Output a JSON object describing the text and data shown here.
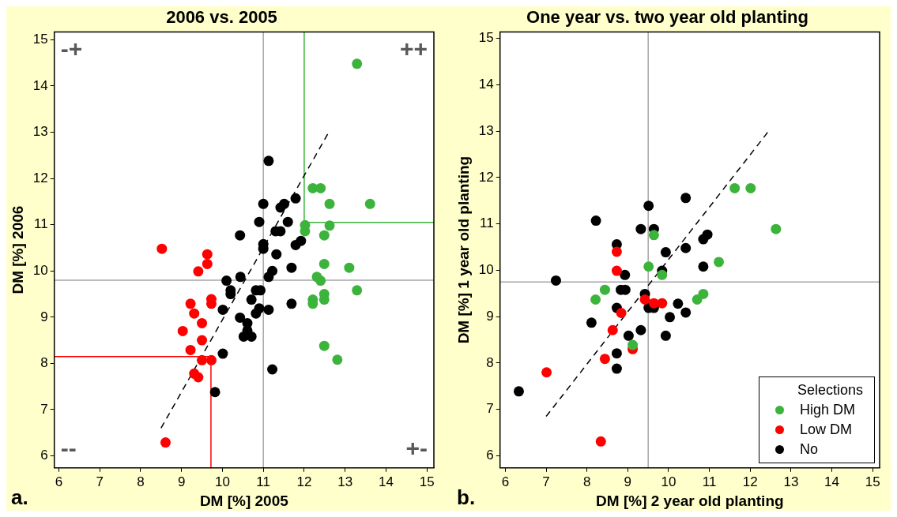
{
  "chart_data": [
    {
      "type": "scatter",
      "title": "2006 vs. 2005",
      "xlabel": "DM [%] 2005",
      "ylabel": "DM [%] 2006",
      "xlim": [
        5.89,
        15.17
      ],
      "ylim": [
        5.74,
        15.17
      ],
      "xticks": [
        6,
        7,
        8,
        9,
        10,
        11,
        12,
        13,
        14,
        15
      ],
      "yticks": [
        6,
        7,
        8,
        9,
        10,
        11,
        12,
        13,
        14,
        15
      ],
      "grid": false,
      "legend": false,
      "marker": "circle",
      "annotations": [
        "-+",
        "++",
        "--",
        "+-",
        "a."
      ],
      "ref_lines": [
        {
          "axis": "x",
          "value": 11,
          "color": "#a6a6a6"
        },
        {
          "axis": "y",
          "value": 9.8,
          "color": "#a6a6a6"
        }
      ],
      "series": [
        {
          "color": "#3cb43c",
          "x": [
            13.29,
            12.21,
            12.4,
            12.62,
            13.61,
            12.02,
            12.02,
            12.62,
            12.49,
            12.49,
            13.1,
            12.31,
            12.4,
            13.29,
            12.21,
            12.21,
            12.49,
            12.49,
            12.49,
            12.81
          ],
          "values": [
            14.48,
            11.79,
            11.79,
            11.45,
            11.45,
            10.99,
            10.86,
            10.98,
            10.77,
            10.15,
            10.07,
            9.87,
            9.79,
            9.58,
            9.38,
            9.29,
            9.5,
            9.38,
            8.38,
            8.08
          ]
        },
        {
          "color": "#ff0000",
          "x": [
            8.52,
            9.63,
            9.63,
            9.41,
            9.73,
            9.73,
            9.22,
            9.31,
            9.5,
            9.03,
            9.5,
            9.22,
            9.5,
            9.73,
            9.31,
            9.41,
            8.61
          ],
          "values": [
            10.48,
            10.36,
            10.15,
            9.99,
            9.39,
            9.29,
            9.29,
            9.08,
            8.87,
            8.7,
            8.5,
            8.29,
            8.07,
            8.07,
            7.78,
            7.7,
            6.29
          ]
        },
        {
          "color": "#000000",
          "x": [
            11.13,
            11.0,
            11.42,
            11.51,
            11.79,
            10.9,
            11.6,
            11.3,
            11.42,
            10.43,
            11.0,
            11.0,
            11.32,
            11.79,
            11.92,
            11.69,
            11.22,
            11.13,
            10.1,
            10.44,
            10.2,
            10.2,
            10.82,
            10.93,
            10.71,
            11.69,
            10.01,
            11.13,
            10.9,
            10.82,
            10.43,
            10.61,
            10.61,
            10.52,
            10.71,
            10.01,
            11.22,
            9.82
          ],
          "values": [
            12.38,
            11.45,
            11.37,
            11.45,
            11.57,
            11.06,
            11.06,
            10.86,
            10.86,
            10.77,
            10.58,
            10.48,
            10.36,
            10.56,
            10.65,
            10.07,
            10.0,
            9.87,
            9.79,
            9.87,
            9.58,
            9.5,
            9.58,
            9.58,
            9.38,
            9.29,
            9.16,
            9.16,
            9.19,
            9.08,
            8.99,
            8.87,
            8.71,
            8.58,
            8.58,
            8.21,
            7.87,
            7.38
          ]
        },
        {
          "type": "line",
          "marker": "none",
          "line_style": "dashed",
          "color": "#000000",
          "x": [
            8.5,
            12.6
          ],
          "values": [
            6.6,
            13.0
          ]
        },
        {
          "type": "line",
          "marker": "none",
          "line_style": "solid",
          "color": "#3cb43c",
          "x": [
            12.0,
            12.0,
            15.17
          ],
          "values": [
            15.17,
            11.05,
            11.05
          ]
        },
        {
          "type": "line",
          "marker": "none",
          "line_style": "solid",
          "color": "#ff0000",
          "x": [
            5.89,
            9.72,
            9.72
          ],
          "values": [
            8.15,
            8.15,
            5.74
          ]
        }
      ]
    },
    {
      "type": "scatter",
      "title": "One year vs. two year old planting",
      "xlabel": "DM [%] 2 year old planting",
      "ylabel": "DM [%] 1 year old planting",
      "legend_title": "Selections",
      "xlim": [
        5.87,
        15.17
      ],
      "ylim": [
        5.74,
        15.14
      ],
      "xticks": [
        6,
        7,
        8,
        9,
        10,
        11,
        12,
        13,
        14,
        15
      ],
      "yticks": [
        6,
        7,
        8,
        9,
        10,
        11,
        12,
        13,
        14,
        15
      ],
      "grid": false,
      "legend": "bottom right",
      "marker": "circle",
      "annotations": [
        "b."
      ],
      "ref_lines": [
        {
          "axis": "x",
          "value": 9.5,
          "color": "#a6a6a6"
        },
        {
          "axis": "y",
          "value": 9.75,
          "color": "#a6a6a6"
        }
      ],
      "series": [
        {
          "name": "High DM",
          "color": "#3cb43c",
          "x": [
            11.62,
            12.01,
            12.63,
            9.64,
            11.23,
            9.51,
            9.84,
            8.44,
            8.21,
            10.7,
            10.85,
            9.12
          ],
          "values": [
            11.77,
            11.77,
            10.89,
            10.76,
            10.18,
            10.08,
            9.9,
            9.58,
            9.37,
            9.37,
            9.49,
            8.39
          ]
        },
        {
          "name": "Low DM",
          "color": "#ff0000",
          "x": [
            8.73,
            8.73,
            9.42,
            9.64,
            9.84,
            8.84,
            8.63,
            9.12,
            8.44,
            7.01,
            8.34
          ],
          "values": [
            10.4,
            9.99,
            9.37,
            9.29,
            9.29,
            9.08,
            8.71,
            8.3,
            8.09,
            7.8,
            6.31
          ]
        },
        {
          "name": "No",
          "color": "#000000",
          "x": [
            10.42,
            9.51,
            8.22,
            9.32,
            9.64,
            10.85,
            10.95,
            8.73,
            10.42,
            9.93,
            9.84,
            10.85,
            8.93,
            7.24,
            8.83,
            8.94,
            9.42,
            8.73,
            9.51,
            9.64,
            10.23,
            10.03,
            10.42,
            8.11,
            9.32,
            9.02,
            9.93,
            8.73,
            8.73,
            6.33
          ],
          "values": [
            11.56,
            11.39,
            11.07,
            10.89,
            10.89,
            10.67,
            10.77,
            10.56,
            10.48,
            10.39,
            9.99,
            10.08,
            9.9,
            9.78,
            9.58,
            9.58,
            9.49,
            9.19,
            9.19,
            9.19,
            9.28,
            8.99,
            9.09,
            8.87,
            8.71,
            8.59,
            8.59,
            8.21,
            7.88,
            7.39
          ]
        },
        {
          "type": "line",
          "marker": "none",
          "line_style": "dashed",
          "color": "#000000",
          "x": [
            7.0,
            12.45
          ],
          "values": [
            6.85,
            13.0
          ]
        }
      ]
    }
  ]
}
